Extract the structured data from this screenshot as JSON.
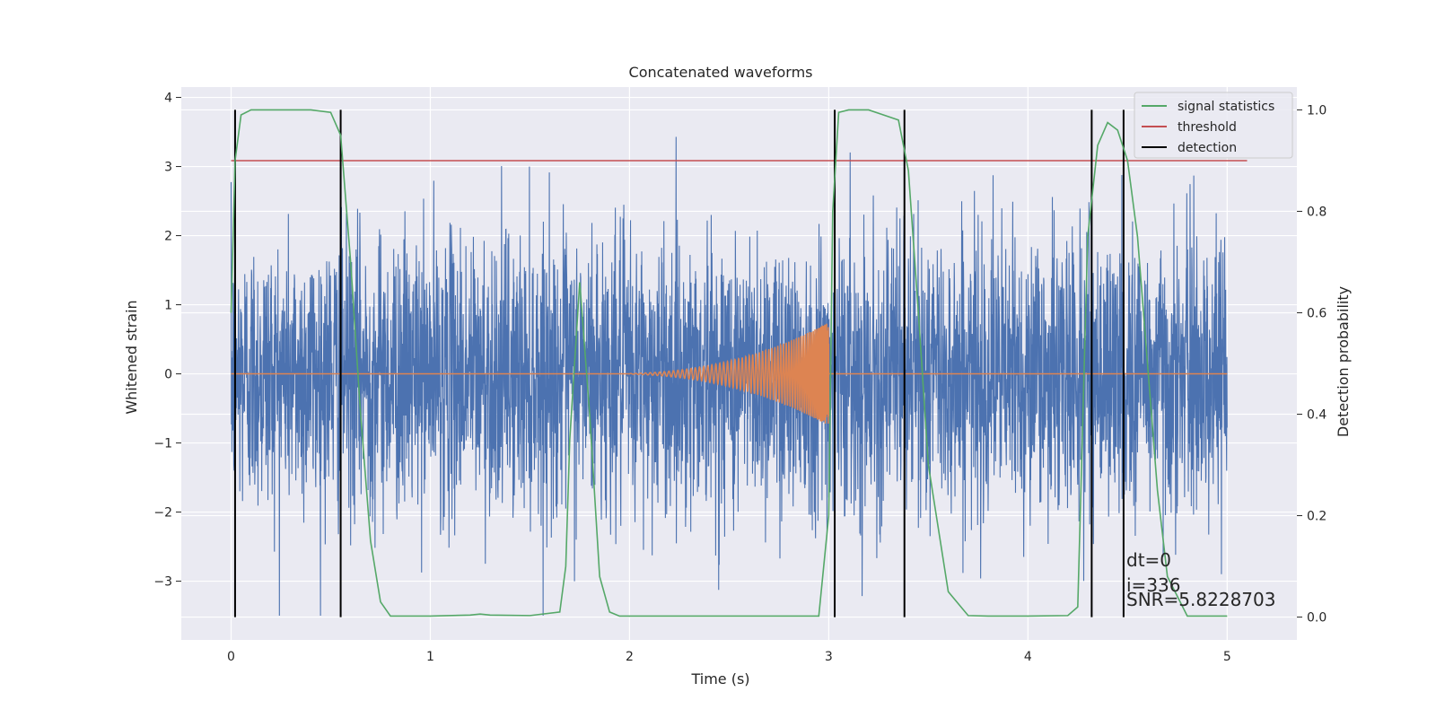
{
  "chart_data": {
    "type": "line",
    "title": "Concatenated waveforms",
    "xlabel": "Time (s)",
    "ylabel": "Whitened strain",
    "y2label": "Detection probability",
    "xlim": [
      -0.25,
      5.35
    ],
    "ylim": [
      -3.85,
      4.15
    ],
    "y2lim": [
      -0.045,
      1.045
    ],
    "xticks": [
      0,
      1,
      2,
      3,
      4,
      5
    ],
    "yticks": [
      -3,
      -2,
      -1,
      0,
      1,
      2,
      3,
      4
    ],
    "y2ticks": [
      0.0,
      0.2,
      0.4,
      0.6,
      0.8,
      1.0
    ],
    "grid": true,
    "legend": {
      "placement": "top-right",
      "entries": [
        {
          "name": "signal statistics",
          "color": "#55a868"
        },
        {
          "name": "threshold",
          "color": "#c44e52"
        },
        {
          "name": "detection",
          "color": "#000000"
        }
      ]
    },
    "colors": {
      "strain": "#4c72b0",
      "template": "#dd8452",
      "statistics": "#55a868",
      "threshold": "#c44e52",
      "detection": "#000000",
      "axes_bg": "#eaeaf2",
      "grid": "#ffffff"
    },
    "strain": {
      "x_start": 0.0,
      "x_end": 5.0,
      "typical_amplitude": 1.0,
      "max_peak": 3.8,
      "min_peak": -3.5
    },
    "template": {
      "x_start": 2.0,
      "x_end": 3.0,
      "max_amplitude": 0.75
    },
    "threshold": {
      "value": 0.9,
      "x": [
        0.0,
        5.1
      ]
    },
    "signal_statistics": {
      "x": [
        0.0,
        0.02,
        0.05,
        0.1,
        0.2,
        0.4,
        0.5,
        0.55,
        0.6,
        0.65,
        0.7,
        0.75,
        0.8,
        1.0,
        1.2,
        1.25,
        1.3,
        1.5,
        1.65,
        1.68,
        1.7,
        1.75,
        1.8,
        1.85,
        1.9,
        1.95,
        2.0,
        2.5,
        2.95,
        3.0,
        3.02,
        3.05,
        3.1,
        3.2,
        3.35,
        3.4,
        3.45,
        3.5,
        3.6,
        3.7,
        3.8,
        4.0,
        4.2,
        4.25,
        4.3,
        4.35,
        4.4,
        4.45,
        4.5,
        4.55,
        4.6,
        4.65,
        4.7,
        4.8,
        5.0
      ],
      "y": [
        0.6,
        0.9,
        0.99,
        1.0,
        1.0,
        1.0,
        0.995,
        0.95,
        0.7,
        0.4,
        0.15,
        0.03,
        0.002,
        0.002,
        0.004,
        0.006,
        0.004,
        0.003,
        0.01,
        0.1,
        0.35,
        0.66,
        0.4,
        0.08,
        0.01,
        0.002,
        0.002,
        0.002,
        0.002,
        0.2,
        0.8,
        0.995,
        1.0,
        1.0,
        0.98,
        0.88,
        0.6,
        0.3,
        0.05,
        0.003,
        0.002,
        0.002,
        0.003,
        0.02,
        0.75,
        0.93,
        0.975,
        0.96,
        0.9,
        0.75,
        0.5,
        0.25,
        0.08,
        0.002,
        0.002
      ]
    },
    "detection_lines": [
      0.02,
      0.55,
      3.03,
      3.38,
      4.32,
      4.48
    ],
    "annotations": [
      "dt=0",
      "i=336",
      "SNR=5.8228703"
    ]
  }
}
